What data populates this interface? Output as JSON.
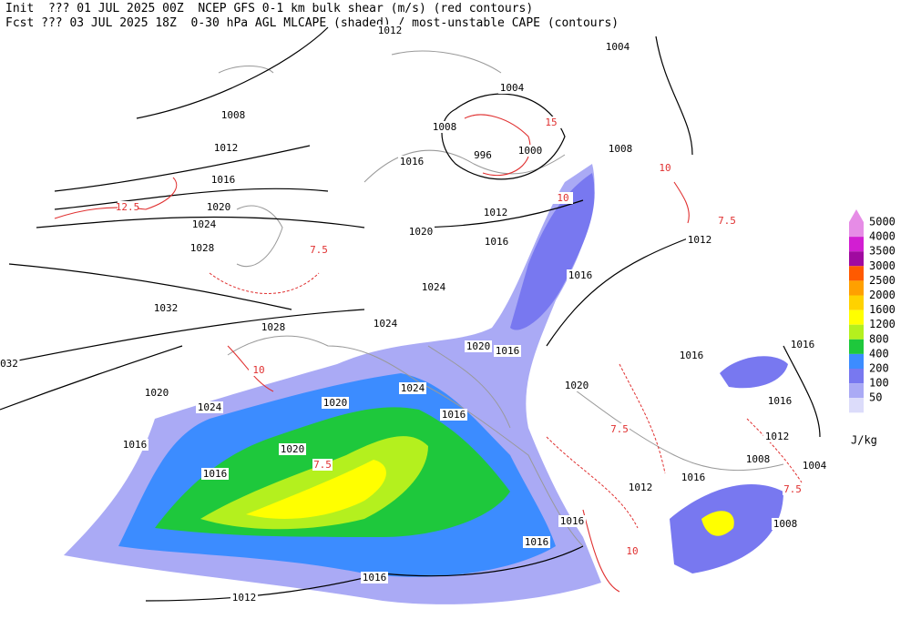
{
  "header": {
    "line1": "Init  ??? 01 JUL 2025 00Z  NCEP GFS 0-1 km bulk shear (m/s) (red contours)",
    "line2": "Fcst ??? 03 JUL 2025 18Z  0-30 hPa AGL MLCAPE (shaded) / most-unstable CAPE (contours)"
  },
  "colorbar": {
    "levels": [
      5000,
      4000,
      3500,
      3000,
      2500,
      2000,
      1600,
      1200,
      800,
      400,
      200,
      100,
      50
    ],
    "colors": [
      "#e68ce6",
      "#d21ed2",
      "#a00aa0",
      "#ff5a00",
      "#ffa000",
      "#ffd200",
      "#ffff00",
      "#b4f01e",
      "#1ec83c",
      "#3c8cff",
      "#7878f0",
      "#aaaaf5",
      "#dcdcfa"
    ],
    "unit": "J/kg"
  },
  "isobar_labels": [
    "1012",
    "1004",
    "1004",
    "1008",
    "1008",
    "1012",
    "1000",
    "1008",
    "1016",
    "996",
    "1016",
    "1020",
    "1024",
    "1012",
    "1020",
    "1016",
    "1028",
    "1012",
    "1016",
    "1024",
    "1032",
    "1024",
    "1028",
    "1020",
    "1016",
    "1016",
    "1016",
    "032",
    "1024",
    "1020",
    "1020",
    "1020",
    "1024",
    "1016",
    "1016",
    "1012",
    "1016",
    "1020",
    "1016",
    "1016",
    "1008",
    "1004",
    "1012",
    "1016",
    "1008",
    "1016",
    "1016",
    "1012"
  ],
  "shear_labels": [
    "7.5",
    "10",
    "15",
    "7.5",
    "10",
    "7.5",
    "10",
    "12.5",
    "7.5",
    "10",
    "7.5"
  ]
}
